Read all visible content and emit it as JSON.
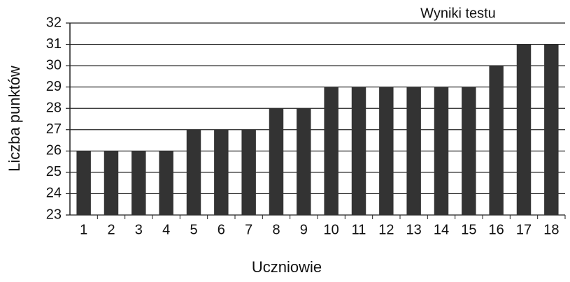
{
  "chart_data": {
    "type": "bar",
    "title": "Wyniki testu",
    "x_label": "Uczniowie",
    "y_label": "Liczba punktów",
    "categories": [
      "1",
      "2",
      "3",
      "4",
      "5",
      "6",
      "7",
      "8",
      "9",
      "10",
      "11",
      "12",
      "13",
      "14",
      "15",
      "16",
      "17",
      "18"
    ],
    "values": [
      26,
      26,
      26,
      26,
      27,
      27,
      27,
      28,
      28,
      29,
      29,
      29,
      29,
      29,
      29,
      30,
      31,
      31
    ],
    "color": "#333333",
    "ylim": [
      23,
      32
    ],
    "yticks": [
      23,
      24,
      25,
      26,
      27,
      28,
      29,
      30,
      31,
      32
    ],
    "grid": true
  }
}
